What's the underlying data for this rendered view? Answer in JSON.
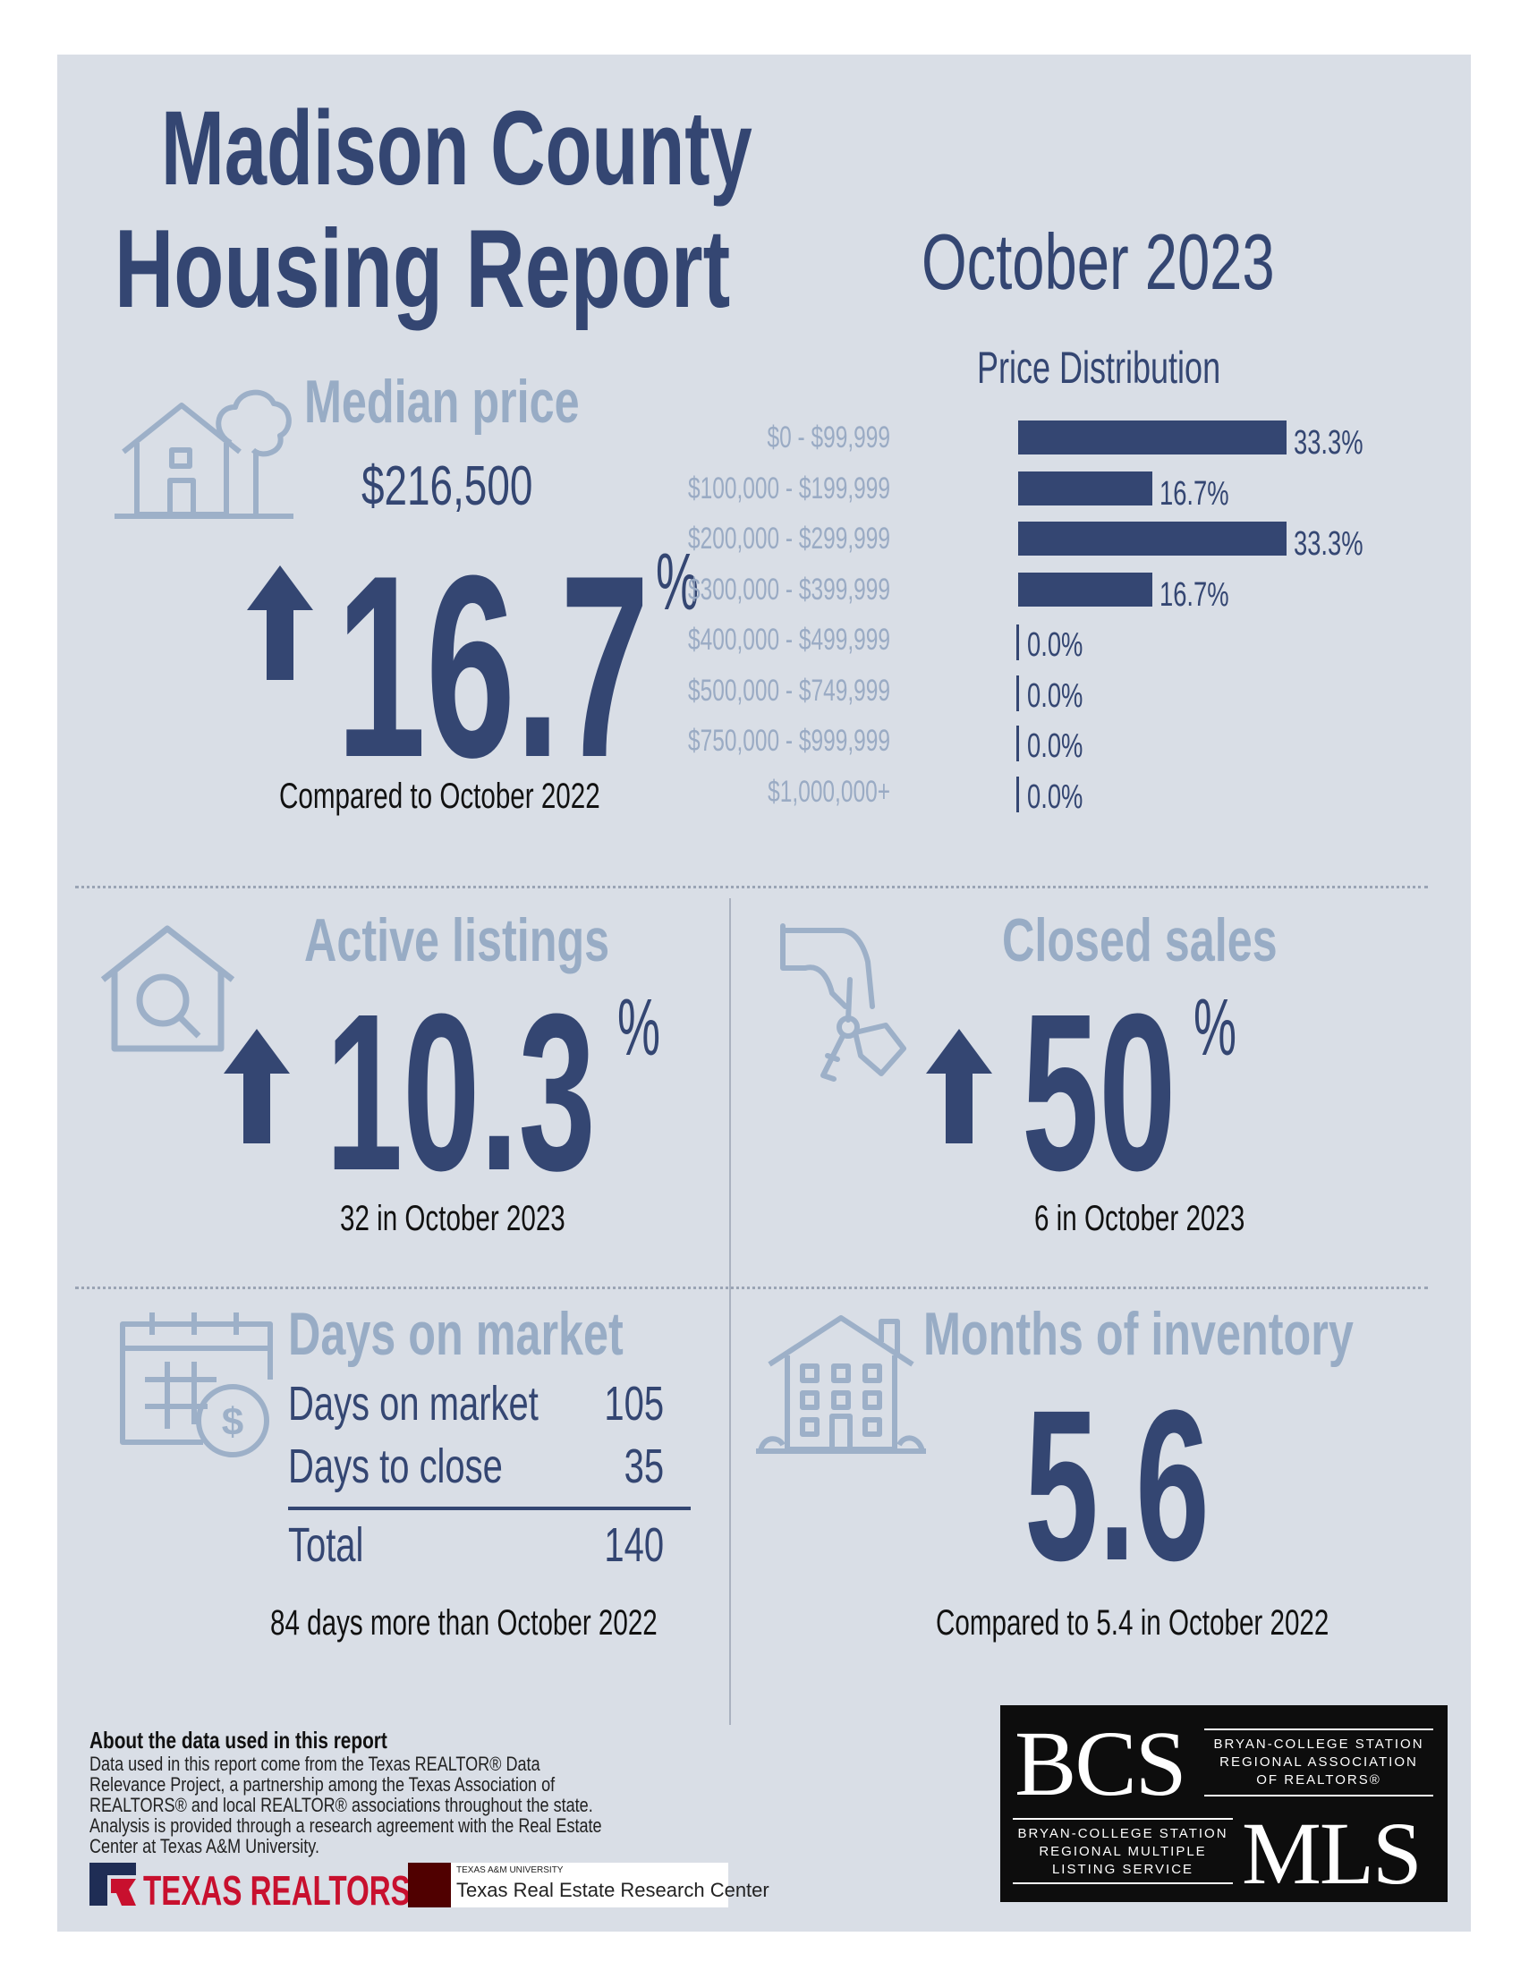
{
  "header": {
    "line1": "Madison County",
    "line2": "Housing Report",
    "month": "October 2023"
  },
  "median_price": {
    "heading": "Median price",
    "value": "$216,500",
    "change": "16.7",
    "percent_sign": "%",
    "direction": "up",
    "note": "Compared to October 2022"
  },
  "chart_data": {
    "type": "bar",
    "orientation": "horizontal",
    "title": "Price Distribution",
    "categories": [
      "$0 - $99,999",
      "$100,000 - $199,999",
      "$200,000 - $299,999",
      "$300,000 - $399,999",
      "$400,000 - $499,999",
      "$500,000 - $749,999",
      "$750,000 - $999,999",
      "$1,000,000+"
    ],
    "values": [
      33.3,
      16.7,
      33.3,
      16.7,
      0.0,
      0.0,
      0.0,
      0.0
    ],
    "data_labels": [
      "33.3%",
      "16.7%",
      "33.3%",
      "16.7%",
      "0.0%",
      "0.0%",
      "0.0%",
      "0.0%"
    ],
    "xlim": [
      0,
      33.3
    ],
    "color": "#344672",
    "grid": false
  },
  "active_listings": {
    "heading": "Active listings",
    "change": "10.3",
    "percent_sign": "%",
    "direction": "up",
    "note": "32 in October 2023"
  },
  "closed_sales": {
    "heading": "Closed sales",
    "change": "50",
    "percent_sign": "%",
    "direction": "up",
    "note": "6 in October 2023"
  },
  "days_on_market": {
    "heading": "Days on market",
    "rows": [
      {
        "label": "Days on market",
        "value": "105"
      },
      {
        "label": "Days to close",
        "value": "35"
      }
    ],
    "total_label": "Total",
    "total_value": "140",
    "note": "84 days more than October 2022"
  },
  "months_inventory": {
    "heading": "Months of inventory",
    "value": "5.6",
    "note": "Compared to 5.4 in October 2022"
  },
  "about": {
    "heading": "About the data used in this report",
    "text": "Data used in this report come from the Texas REALTOR® Data Relevance Project, a partnership among the Texas Association of REALTORS® and local REALTOR® associations throughout the state. Analysis is provided through a research agreement with the Real Estate Center at Texas A&M University."
  },
  "footer": {
    "texas_realtors": "TEXAS REALTORS",
    "tamu": "TEXAS A&M UNIVERSITY",
    "trerc": "Texas Real Estate Research Center"
  },
  "bcs_logo": {
    "bcs": "BCS",
    "association": "BRYAN-COLLEGE STATION\nREGIONAL ASSOCIATION\nOF REALTORS®",
    "mls_service": "BRYAN-COLLEGE STATION\nREGIONAL MULTIPLE\nLISTING SERVICE",
    "mls": "MLS"
  },
  "colors": {
    "navy": "#344672",
    "steel": "#8fa4bf",
    "panel": "#d9dee6"
  }
}
